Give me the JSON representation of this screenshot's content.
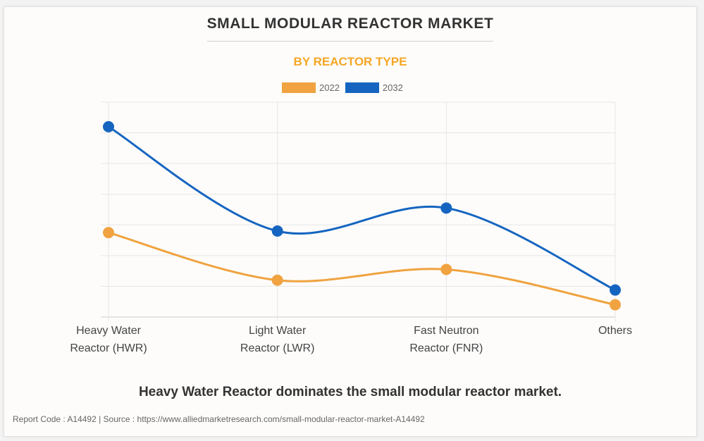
{
  "header": {
    "title": "SMALL MODULAR REACTOR MARKET",
    "subtitle": "BY REACTOR TYPE"
  },
  "colors": {
    "series_2022": "#f0a340",
    "series_2032": "#1565c0",
    "subtitle": "#f5a623",
    "grid": "#e6e6e6"
  },
  "chart_data": {
    "type": "line",
    "title": "SMALL MODULAR REACTOR MARKET",
    "subtitle": "BY REACTOR TYPE",
    "categories": [
      "Heavy Water Reactor (HWR)",
      "Light Water Reactor (LWR)",
      "Fast Neutron Reactor (FNR)",
      "Others"
    ],
    "category_lines": [
      [
        "Heavy Water",
        "Reactor (HWR)"
      ],
      [
        "Light Water",
        "Reactor (LWR)"
      ],
      [
        "Fast Neutron",
        "Reactor (FNR)"
      ],
      [
        "Others"
      ]
    ],
    "series": [
      {
        "name": "2022",
        "values": [
          2.75,
          1.2,
          1.55,
          0.4
        ]
      },
      {
        "name": "2032",
        "values": [
          6.2,
          2.8,
          3.55,
          0.88
        ]
      }
    ],
    "xlabel": "",
    "ylabel": "",
    "ylim": [
      0,
      7
    ],
    "y_tick_labels_shown": false,
    "grid": true,
    "smooth": true,
    "legend_position": "top-center"
  },
  "headline": "Heavy Water Reactor dominates the small modular reactor market.",
  "footer": "Report Code : A14492  |  Source : https://www.alliedmarketresearch.com/small-modular-reactor-market-A14492"
}
